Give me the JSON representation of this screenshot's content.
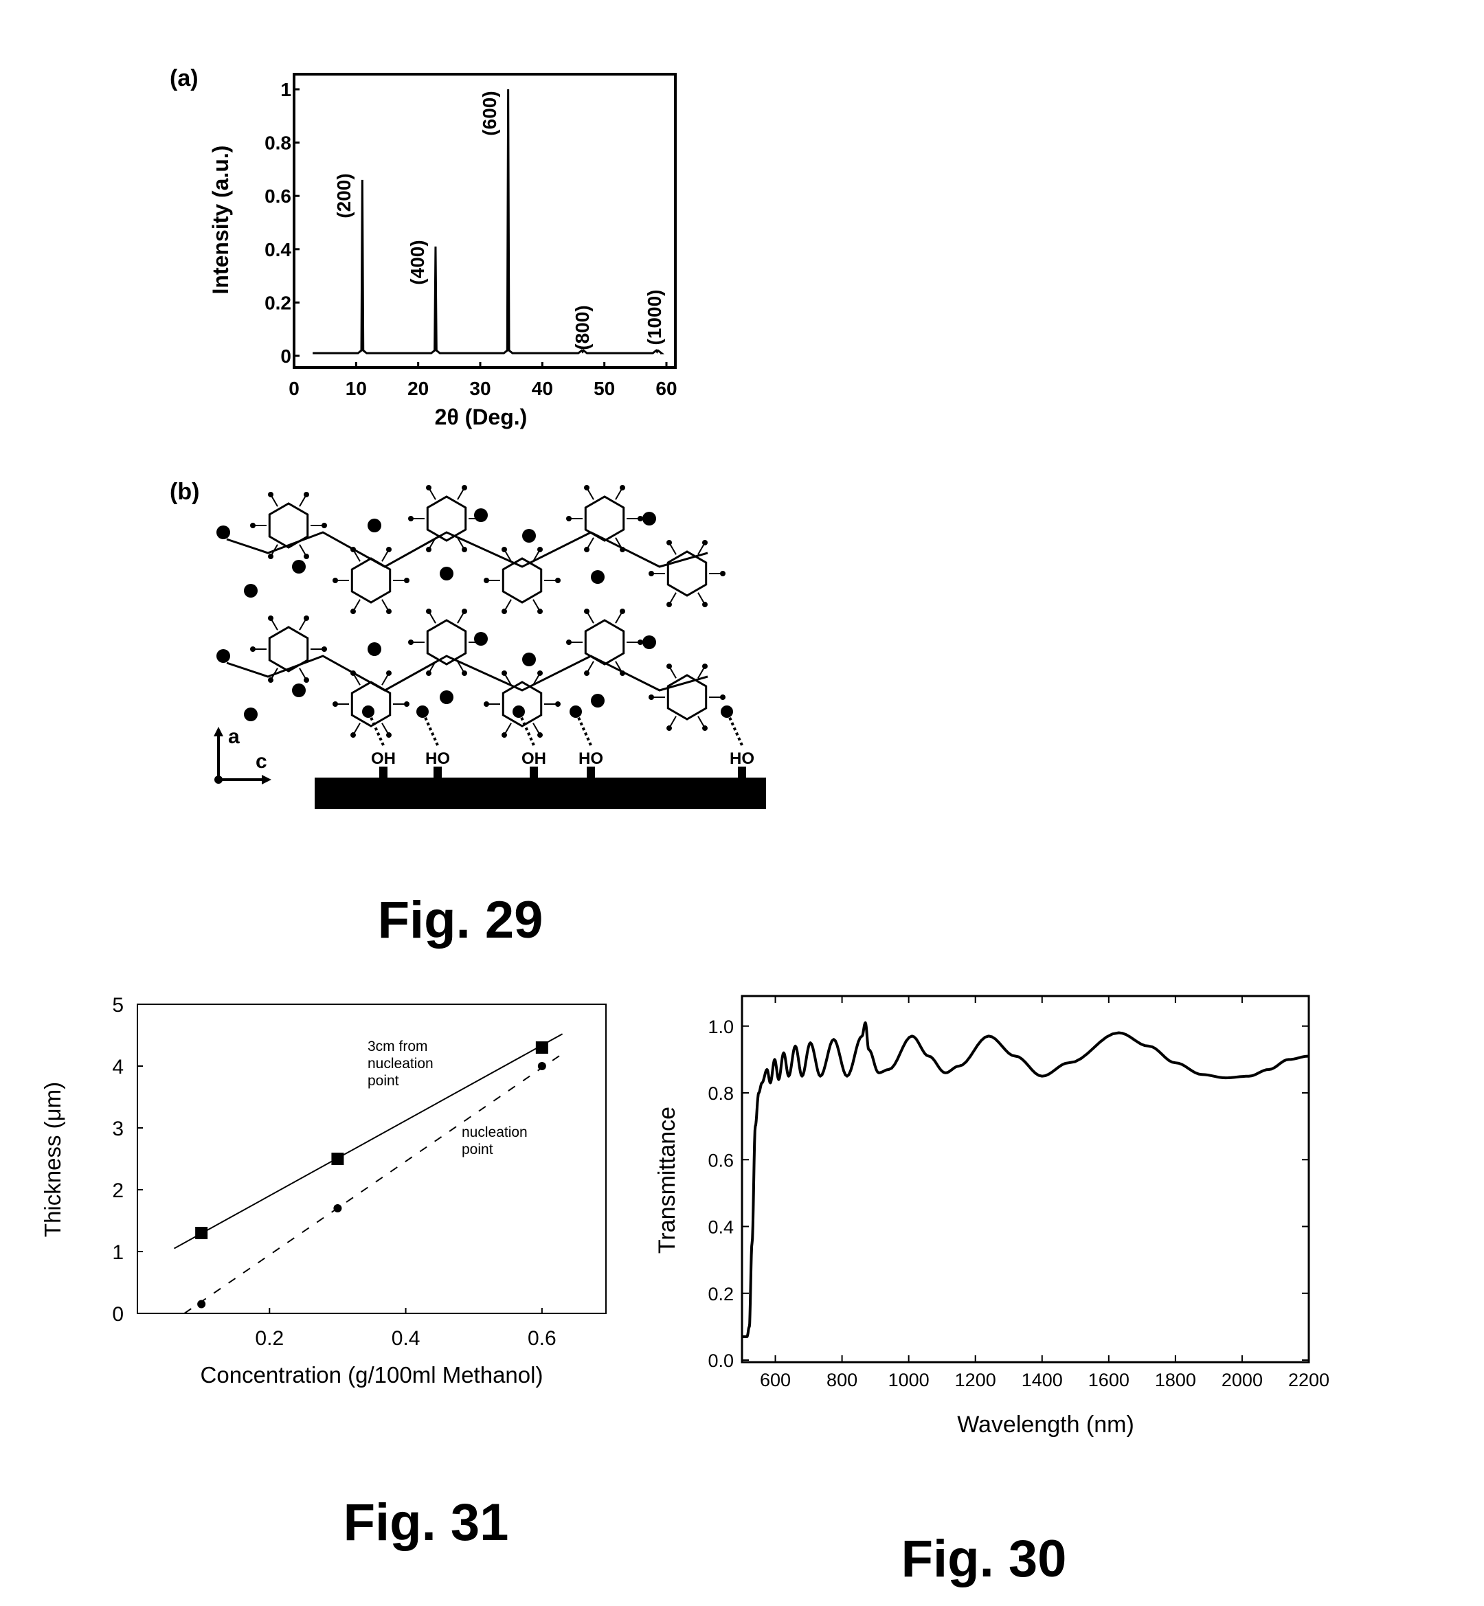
{
  "figure29": {
    "caption": "Fig. 29",
    "panel_a_label": "(a)",
    "panel_b_label": "(b)",
    "structure": {
      "axis_a": "a",
      "axis_c": "c",
      "anchor_groups": [
        "OH",
        "HO",
        "OH",
        "HO",
        "HO"
      ]
    }
  },
  "figure31": {
    "caption": "Fig. 31"
  },
  "figure30": {
    "caption": "Fig. 30"
  },
  "chart_data": [
    {
      "id": "fig29a",
      "type": "line",
      "title": "",
      "xlabel": "2θ (Deg.)",
      "ylabel": "Intensity (a.u.)",
      "xlim": [
        0,
        60
      ],
      "ylim": [
        -0.03,
        1.05
      ],
      "xticks": [
        0,
        10,
        20,
        30,
        40,
        50,
        60
      ],
      "yticks": [
        0,
        0.2,
        0.4,
        0.6,
        0.8,
        1
      ],
      "ytick_labels": [
        "0",
        "0.2",
        "0.4",
        "0.6",
        "0.8",
        "1"
      ],
      "grid": false,
      "baseline": 0.01,
      "x_range": [
        3,
        59
      ],
      "peaks": [
        {
          "label": "(200)",
          "x": 11,
          "y": 0.66
        },
        {
          "label": "(400)",
          "x": 22.8,
          "y": 0.41
        },
        {
          "label": "(600)",
          "x": 34.5,
          "y": 1.0
        },
        {
          "label": "(800)",
          "x": 46.5,
          "y": 0.015
        },
        {
          "label": "(1000)",
          "x": 58.5,
          "y": 0.015
        }
      ]
    },
    {
      "id": "fig31",
      "type": "scatter",
      "xlabel": "Concentration (g/100ml Methanol)",
      "ylabel": "Thickness (μm)",
      "xlim": [
        0,
        0.7
      ],
      "ylim": [
        0,
        5
      ],
      "xticks": [
        0.2,
        0.4,
        0.6
      ],
      "yticks": [
        0,
        1,
        2,
        3,
        4,
        5
      ],
      "grid": false,
      "series": [
        {
          "name": "3cm from nucleation point",
          "annotation_lines": [
            "3cm from",
            "nucleation",
            "point"
          ],
          "marker": "square",
          "line": "solid",
          "x": [
            0.1,
            0.3,
            0.6
          ],
          "y": [
            1.3,
            2.5,
            4.3
          ],
          "fit": [
            [
              0.06,
              1.05
            ],
            [
              0.63,
              4.52
            ]
          ]
        },
        {
          "name": "nucleation point",
          "annotation_lines": [
            "nucleation",
            "point"
          ],
          "marker": "dot",
          "line": "dashed",
          "x": [
            0.1,
            0.3,
            0.6
          ],
          "y": [
            0.15,
            1.7,
            4.0
          ],
          "fit": [
            [
              0.075,
              0.0
            ],
            [
              0.63,
              4.2
            ]
          ]
        }
      ]
    },
    {
      "id": "fig30",
      "type": "line",
      "xlabel": "Wavelength (nm)",
      "ylabel": "Transmittance",
      "xlim": [
        500,
        2200
      ],
      "ylim": [
        0,
        1.09
      ],
      "xticks": [
        600,
        800,
        1000,
        1200,
        1400,
        1600,
        1800,
        2000,
        2200
      ],
      "yticks": [
        0.0,
        0.2,
        0.4,
        0.6,
        0.8,
        1.0
      ],
      "ytick_labels": [
        "0.0",
        "0.2",
        "0.4",
        "0.6",
        "0.8",
        "1.0"
      ],
      "grid": false,
      "series": [
        {
          "name": "Transmittance",
          "points": [
            [
              500,
              0.07
            ],
            [
              515,
              0.07
            ],
            [
              522,
              0.1
            ],
            [
              530,
              0.35
            ],
            [
              540,
              0.7
            ],
            [
              550,
              0.8
            ],
            [
              560,
              0.83
            ],
            [
              575,
              0.87
            ],
            [
              585,
              0.83
            ],
            [
              598,
              0.9
            ],
            [
              610,
              0.84
            ],
            [
              625,
              0.92
            ],
            [
              640,
              0.85
            ],
            [
              660,
              0.94
            ],
            [
              680,
              0.85
            ],
            [
              705,
              0.95
            ],
            [
              735,
              0.85
            ],
            [
              775,
              0.96
            ],
            [
              815,
              0.85
            ],
            [
              860,
              0.97
            ],
            [
              870,
              1.01
            ],
            [
              880,
              0.93
            ],
            [
              910,
              0.86
            ],
            [
              940,
              0.87
            ],
            [
              1010,
              0.97
            ],
            [
              1060,
              0.91
            ],
            [
              1110,
              0.86
            ],
            [
              1150,
              0.88
            ],
            [
              1240,
              0.97
            ],
            [
              1320,
              0.91
            ],
            [
              1400,
              0.85
            ],
            [
              1480,
              0.89
            ],
            [
              1630,
              0.98
            ],
            [
              1720,
              0.94
            ],
            [
              1800,
              0.89
            ],
            [
              1880,
              0.855
            ],
            [
              1950,
              0.845
            ],
            [
              2020,
              0.85
            ],
            [
              2080,
              0.87
            ],
            [
              2140,
              0.9
            ],
            [
              2200,
              0.91
            ]
          ]
        }
      ]
    }
  ]
}
